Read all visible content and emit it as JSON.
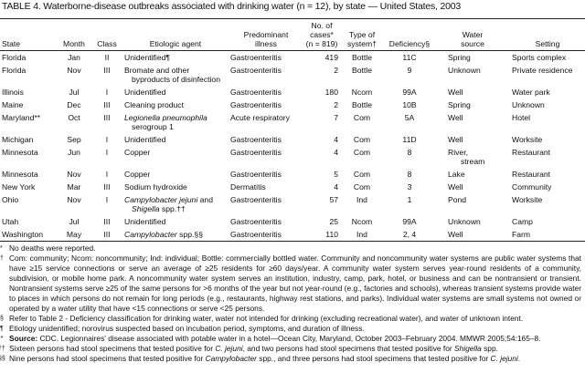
{
  "title": "TABLE 4. Waterborne-disease outbreaks associated with drinking water (n = 12), by state — United States, 2003",
  "headers": {
    "state": "State",
    "month": "Month",
    "class": "Class",
    "agent": "Etiologic agent",
    "illness_1": "Predominant",
    "illness_2": "illness",
    "cases_1": "No. of",
    "cases_2": "cases*",
    "cases_3": "(n = 819)",
    "type_1": "Type of",
    "type_2": "system†",
    "deficiency": "Deficiency§",
    "source_1": "Water",
    "source_2": "source",
    "setting": "Setting"
  },
  "rows": [
    {
      "state": "Florida",
      "month": "Jan",
      "class": "II",
      "agent": "Unidentified¶",
      "agent2": "",
      "illness": "Gastroenteritis",
      "cases": "419",
      "type": "Bottle",
      "deficiency": "11C",
      "source": "Spring",
      "source2": "",
      "setting": "Sports complex"
    },
    {
      "state": "Florida",
      "month": "Nov",
      "class": "III",
      "agent": "Bromate and other",
      "agent2": "byproducts of disinfection",
      "illness": "Gastroenteritis",
      "cases": "2",
      "type": "Bottle",
      "deficiency": "9",
      "source": "Unknown",
      "source2": "",
      "setting": "Private residence"
    },
    {
      "state": "Illinois",
      "month": "Jul",
      "class": "I",
      "agent": "Unidentified",
      "agent2": "",
      "illness": "Gastroenteritis",
      "cases": "180",
      "type": "Ncom",
      "deficiency": "99A",
      "source": "Well",
      "source2": "",
      "setting": "Water park"
    },
    {
      "state": "Maine",
      "month": "Dec",
      "class": "III",
      "agent": "Cleaning product",
      "agent2": "",
      "illness": "Gastroenteritis",
      "cases": "2",
      "type": "Bottle",
      "deficiency": "10B",
      "source": "Spring",
      "source2": "",
      "setting": "Unknown"
    },
    {
      "state": "Maryland**",
      "month": "Oct",
      "class": "III",
      "agent": "Legionella pneumophila",
      "agent2": "serogroup 1",
      "illness": "Acute respiratory",
      "cases": "7",
      "type": "Com",
      "deficiency": "5A",
      "source": "Well",
      "source2": "",
      "setting": "Hotel"
    },
    {
      "state": "Michigan",
      "month": "Sep",
      "class": "I",
      "agent": "Unidentified",
      "agent2": "",
      "illness": "Gastroenteritis",
      "cases": "4",
      "type": "Com",
      "deficiency": "11D",
      "source": "Well",
      "source2": "",
      "setting": "Worksite"
    },
    {
      "state": "Minnesota",
      "month": "Jun",
      "class": "I",
      "agent": "Copper",
      "agent2": "",
      "illness": "Gastroenteritis",
      "cases": "4",
      "type": "Com",
      "deficiency": "8",
      "source": "River,",
      "source2": "stream",
      "setting": "Restaurant"
    },
    {
      "state": "Minnesota",
      "month": "Nov",
      "class": "I",
      "agent": "Copper",
      "agent2": "",
      "illness": "Gastroenteritis",
      "cases": "5",
      "type": "Com",
      "deficiency": "8",
      "source": "Lake",
      "source2": "",
      "setting": "Restaurant"
    },
    {
      "state": "New York",
      "month": "Mar",
      "class": "III",
      "agent": "Sodium hydroxide",
      "agent2": "",
      "illness": "Dermatitis",
      "cases": "4",
      "type": "Com",
      "deficiency": "3",
      "source": "Well",
      "source2": "",
      "setting": "Community"
    },
    {
      "state": "Ohio",
      "month": "Nov",
      "class": "I",
      "agent": "Campylobacter jejuni and",
      "agent2": "Shigella spp.††",
      "illness": "Gastroenteritis",
      "cases": "57",
      "type": "Ind",
      "deficiency": "1",
      "source": "Pond",
      "source2": "",
      "setting": "Worksite"
    },
    {
      "state": "Utah",
      "month": "Jul",
      "class": "III",
      "agent": "Unidentified",
      "agent2": "",
      "illness": "Gastroenteritis",
      "cases": "25",
      "type": "Ncom",
      "deficiency": "99A",
      "source": "Unknown",
      "source2": "",
      "setting": "Camp"
    },
    {
      "state": "Washington",
      "month": "May",
      "class": "III",
      "agent": "Campylobacter spp.§§",
      "agent2": "",
      "illness": "Gastroenteritis",
      "cases": "110",
      "type": "Ind",
      "deficiency": "2, 4",
      "source": "Well",
      "source2": "",
      "setting": "Farm"
    }
  ],
  "footnotes": [
    {
      "mark": "*",
      "text": "No deaths were reported."
    },
    {
      "mark": "†",
      "text": "Com: community; Ncom: noncommunity; Ind: individual; Bottle: commercially bottled water. Community and noncommunity water systems are public water systems that have ≥15 service connections or serve an average of ≥25 residents for ≥60 days/year. A community water system serves year-round residents of a community, subdivision, or mobile home park. A noncommunity water system serves an institution, industry, camp, park, hotel, or business and can be nontransient or transient. Nontransient systems serve ≥25 of the same persons for >6 months of the year but not year-round (e.g., factories and schools), whereas transient systems provide water to places in which persons do not remain for long periods (e.g., restaurants, highway rest stations, and parks). Individual water systems are small systems not owned or operated by a water utility that have <15 connections or serve <25 persons."
    },
    {
      "mark": "§",
      "text": "Refer to Table 2 - Deficiency classification for drinking water, water not intended for drinking (excluding recreational water), and water of unknown intent."
    },
    {
      "mark": "¶",
      "text": "Etiology unidentified; norovirus suspected based on incubation period, symptoms, and duration of illness."
    },
    {
      "mark": "**",
      "label": "Source:",
      "text": "CDC. Legionnaires' disease associated with potable water in a hotel—Ocean City, Maryland, October 2003–February 2004. MMWR 2005;54:165–8."
    },
    {
      "mark": "††",
      "text": "Sixteen persons had stool specimens that tested positive for C. jejuni, and two persons had stool specimens that tested positive for Shigella spp."
    },
    {
      "mark": "§§",
      "text": "Nine persons had stool specimens that tested positive for Campylobacter spp., and three persons had stool specimens that tested positive for C. jejuni."
    }
  ]
}
